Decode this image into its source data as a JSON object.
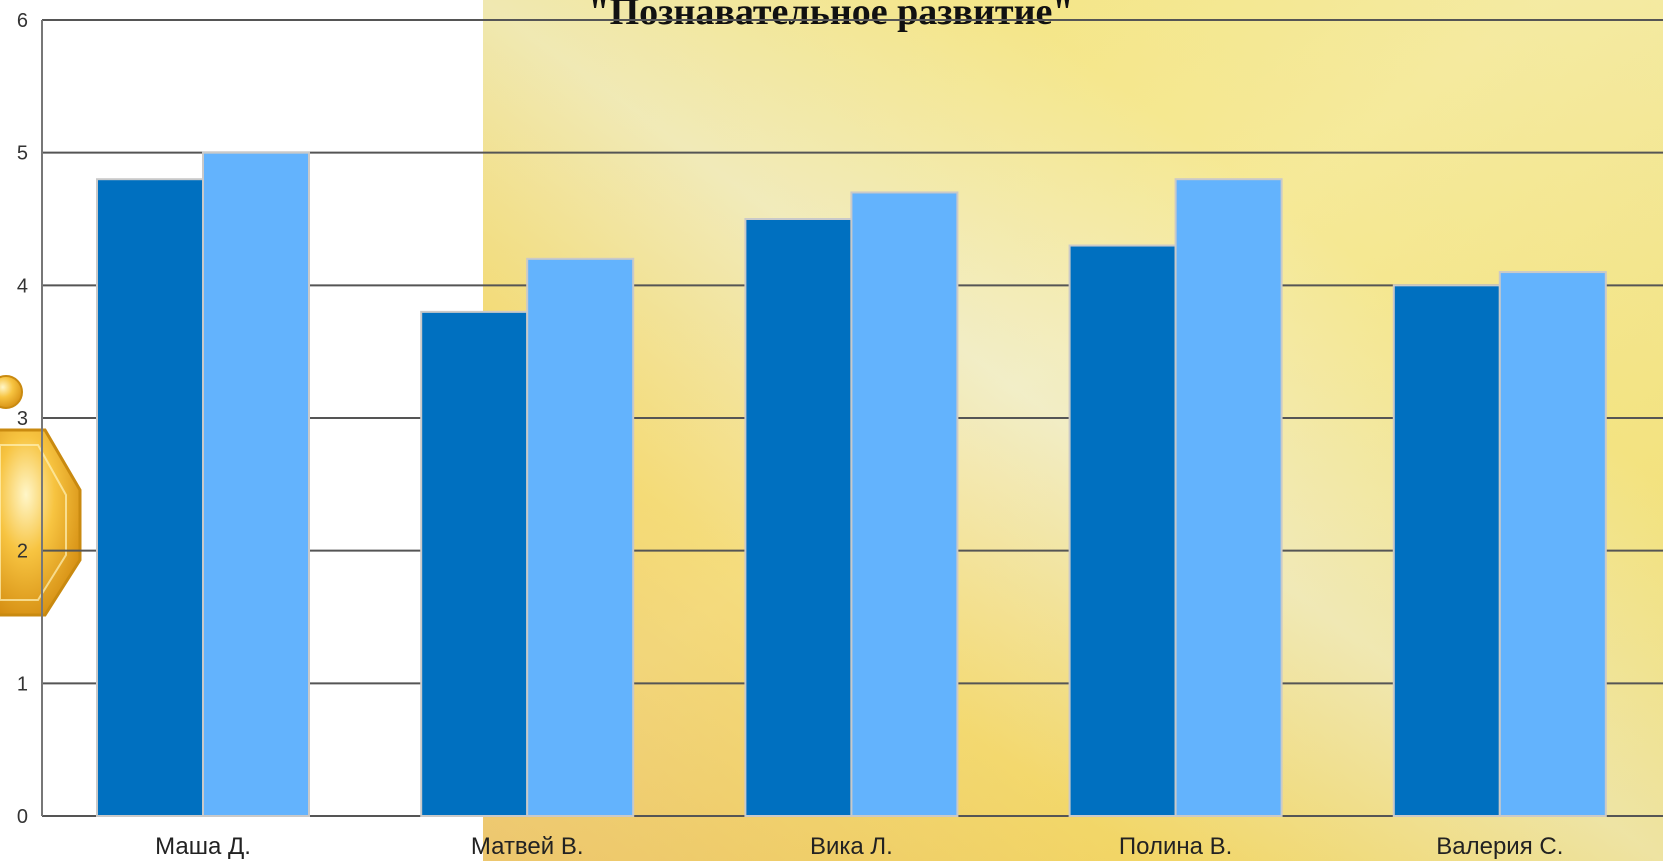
{
  "chart_data": {
    "type": "bar",
    "title": "\"Познавательное развитие\"",
    "xlabel": "",
    "ylabel": "",
    "categories": [
      "Маша Д.",
      "Матвей В.",
      "Вика Л.",
      "Полина В.",
      "Валерия С."
    ],
    "series": [
      {
        "values": [
          4.8,
          3.8,
          4.5,
          4.3,
          4.0
        ],
        "color": "#0070c0"
      },
      {
        "values": [
          5.0,
          4.2,
          4.7,
          4.8,
          4.1
        ],
        "color": "#63b3fd"
      }
    ],
    "ylim": [
      0,
      6
    ],
    "yticks": [
      0,
      1,
      2,
      3,
      4,
      5,
      6
    ],
    "grid": true,
    "legend": "none"
  },
  "colors": {
    "background_gold": "#f0cf56",
    "background_light": "#f8ef9f",
    "gridline": "#555555",
    "bar_border": "#c9c9c9"
  },
  "decoration": {
    "left_ornament": "gold-gem-icon"
  }
}
